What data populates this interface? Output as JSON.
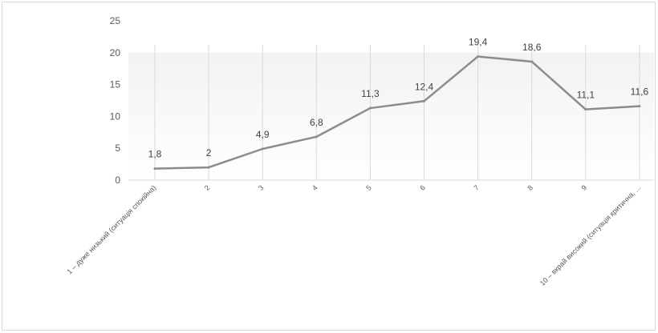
{
  "chart_data": {
    "type": "line",
    "categories": [
      "1 – дуже низький (ситуація спокійна)",
      "2",
      "3",
      "4",
      "5",
      "6",
      "7",
      "8",
      "9",
      "10 – вкрай високий (ситуація критична, ..."
    ],
    "values": [
      1.8,
      2,
      4.9,
      6.8,
      11.3,
      12.4,
      19.4,
      18.6,
      11.1,
      11.6
    ],
    "data_labels": [
      "1,8",
      "2",
      "4,9",
      "6,8",
      "11,3",
      "12,4",
      "19,4",
      "18,6",
      "11,1",
      "11,6"
    ],
    "y_ticks": [
      "0",
      "5",
      "10",
      "15",
      "20",
      "25"
    ],
    "ylim": [
      0,
      25
    ],
    "line_color": "#8c8c8c",
    "plot_gradient": [
      "#f2f2f2",
      "#ffffff"
    ],
    "grid": "vertical",
    "legend": "none"
  }
}
